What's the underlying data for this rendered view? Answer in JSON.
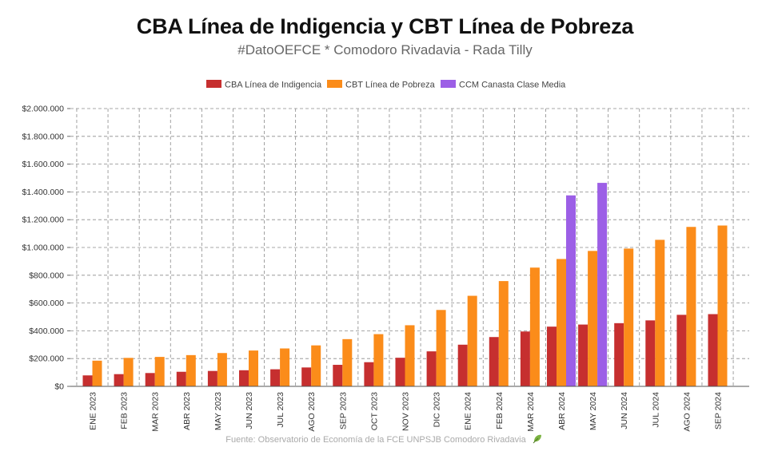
{
  "chart_data": {
    "type": "bar",
    "title": "CBA Línea de Indigencia y CBT Línea de Pobreza",
    "subtitle": "#DatoOEFCE * Comodoro Rivadavia - Rada Tilly",
    "source": "Fuente: Observatorio de Economía de la FCE UNPSJB Comodoro Rivadavia",
    "categories": [
      "ENE 2023",
      "FEB 2023",
      "MAR 2023",
      "ABR 2023",
      "MAY 2023",
      "JUN 2023",
      "JUL 2023",
      "AGO 2023",
      "SEP 2023",
      "OCT 2023",
      "NOV 2023",
      "DIC 2023",
      "ENE 2024",
      "FEB 2024",
      "MAR 2024",
      "ABR 2024",
      "MAY 2024",
      "JUN 2024",
      "JUL 2024",
      "AGO 2024",
      "SEP 2024"
    ],
    "series": [
      {
        "name": "CBA Línea de Indigencia",
        "color": "#c62f2f",
        "values": [
          79000,
          88000,
          96000,
          105000,
          111000,
          116000,
          123000,
          136000,
          155000,
          174000,
          206000,
          252000,
          300000,
          355000,
          395000,
          430000,
          445000,
          455000,
          475000,
          515000,
          520000
        ]
      },
      {
        "name": "CBT Línea de Pobreza",
        "color": "#fb8c1a",
        "values": [
          185000,
          205000,
          212000,
          225000,
          240000,
          258000,
          273000,
          295000,
          340000,
          376000,
          440000,
          550000,
          652000,
          758000,
          855000,
          917000,
          975000,
          992000,
          1055000,
          1148000,
          1158000
        ]
      },
      {
        "name": "CCM Canasta Clase Media",
        "color": "#9c5fe6",
        "values": [
          null,
          null,
          null,
          null,
          null,
          null,
          null,
          null,
          null,
          null,
          null,
          null,
          null,
          null,
          null,
          1375000,
          1465000,
          null,
          null,
          null,
          null
        ]
      }
    ],
    "yticks": [
      "$0",
      "$200.000",
      "$400.000",
      "$600.000",
      "$800.000",
      "$1.000.000",
      "$1.200.000",
      "$1.400.000",
      "$1.600.000",
      "$1.800.000",
      "$2.000.000"
    ],
    "ylim": [
      0,
      2000000
    ],
    "grid": true,
    "legend_position": "top-center"
  }
}
